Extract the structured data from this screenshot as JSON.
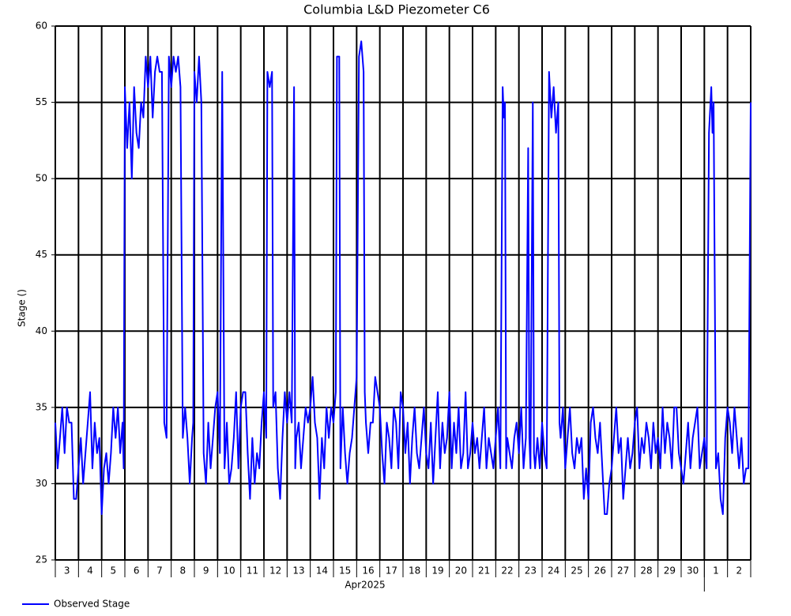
{
  "chart_data": {
    "type": "line",
    "title": "Columbia L&D Piezometer C6",
    "y_label": "Stage ()",
    "x_label": "Apr2025",
    "xlim": [
      0,
      30
    ],
    "ylim": [
      25,
      60
    ],
    "yticks": [
      25,
      30,
      35,
      40,
      45,
      50,
      55,
      60
    ],
    "grid": true,
    "x_gridlines": [
      0,
      1,
      2,
      3,
      4,
      5,
      6,
      7,
      8,
      9,
      10,
      11,
      12,
      13,
      14,
      15,
      16,
      17,
      18,
      19,
      20,
      21,
      22,
      23,
      24,
      25,
      26,
      27,
      28,
      29,
      30
    ],
    "month_ticks": [
      28
    ],
    "xticks": [
      {
        "value": 0.5,
        "label": "3"
      },
      {
        "value": 1.5,
        "label": "4"
      },
      {
        "value": 2.5,
        "label": "5"
      },
      {
        "value": 3.5,
        "label": "6"
      },
      {
        "value": 4.5,
        "label": "7"
      },
      {
        "value": 5.5,
        "label": "8"
      },
      {
        "value": 6.5,
        "label": "9"
      },
      {
        "value": 7.5,
        "label": "10"
      },
      {
        "value": 8.5,
        "label": "11"
      },
      {
        "value": 9.5,
        "label": "12"
      },
      {
        "value": 10.5,
        "label": "13"
      },
      {
        "value": 11.5,
        "label": "14"
      },
      {
        "value": 12.5,
        "label": "15"
      },
      {
        "value": 13.5,
        "label": "16"
      },
      {
        "value": 14.5,
        "label": "17"
      },
      {
        "value": 15.5,
        "label": "18"
      },
      {
        "value": 16.5,
        "label": "19"
      },
      {
        "value": 17.5,
        "label": "20"
      },
      {
        "value": 18.5,
        "label": "21"
      },
      {
        "value": 19.5,
        "label": "22"
      },
      {
        "value": 20.5,
        "label": "23"
      },
      {
        "value": 21.5,
        "label": "24"
      },
      {
        "value": 22.5,
        "label": "25"
      },
      {
        "value": 23.5,
        "label": "26"
      },
      {
        "value": 24.5,
        "label": "27"
      },
      {
        "value": 25.5,
        "label": "28"
      },
      {
        "value": 26.5,
        "label": "29"
      },
      {
        "value": 27.5,
        "label": "30"
      },
      {
        "value": 28.5,
        "label": "1"
      },
      {
        "value": 29.5,
        "label": "2"
      }
    ],
    "x": [
      0,
      0.1,
      0.2,
      0.3,
      0.4,
      0.5,
      0.6,
      0.7,
      0.8,
      0.9,
      1,
      1.1,
      1.2,
      1.3,
      1.4,
      1.5,
      1.6,
      1.7,
      1.8,
      1.9,
      2,
      2.1,
      2.2,
      2.3,
      2.4,
      2.5,
      2.6,
      2.7,
      2.8,
      2.9,
      2.95,
      3,
      3.1,
      3.2,
      3.3,
      3.4,
      3.5,
      3.6,
      3.7,
      3.8,
      3.9,
      4,
      4.1,
      4.2,
      4.3,
      4.4,
      4.5,
      4.6,
      4.7,
      4.8,
      4.9,
      5,
      5.1,
      5.2,
      5.3,
      5.4,
      5.5,
      5.6,
      5.7,
      5.8,
      5.9,
      5.95,
      6,
      6.1,
      6.2,
      6.3,
      6.4,
      6.5,
      6.6,
      6.7,
      6.8,
      6.9,
      7,
      7.1,
      7.2,
      7.3,
      7.4,
      7.5,
      7.6,
      7.7,
      7.8,
      7.9,
      8,
      8.1,
      8.2,
      8.3,
      8.4,
      8.5,
      8.6,
      8.7,
      8.8,
      8.9,
      9,
      9.1,
      9.15,
      9.25,
      9.35,
      9.4,
      9.5,
      9.6,
      9.7,
      9.8,
      9.9,
      10,
      10.1,
      10.2,
      10.3,
      10.35,
      10.4,
      10.5,
      10.6,
      10.7,
      10.8,
      10.9,
      11,
      11.1,
      11.2,
      11.3,
      11.4,
      11.5,
      11.6,
      11.7,
      11.8,
      11.9,
      12,
      12.1,
      12.15,
      12.25,
      12.3,
      12.4,
      12.5,
      12.6,
      12.7,
      12.8,
      12.9,
      13,
      13.1,
      13.2,
      13.3,
      13.35,
      13.4,
      13.5,
      13.6,
      13.7,
      13.8,
      13.9,
      14,
      14.1,
      14.2,
      14.3,
      14.4,
      14.5,
      14.6,
      14.7,
      14.8,
      14.9,
      15,
      15.1,
      15.2,
      15.3,
      15.4,
      15.5,
      15.6,
      15.7,
      15.8,
      15.9,
      16,
      16.1,
      16.2,
      16.3,
      16.4,
      16.5,
      16.6,
      16.7,
      16.8,
      16.9,
      17,
      17.1,
      17.2,
      17.3,
      17.4,
      17.5,
      17.6,
      17.7,
      17.8,
      17.9,
      18,
      18.1,
      18.2,
      18.3,
      18.4,
      18.5,
      18.6,
      18.7,
      18.8,
      18.9,
      19,
      19.1,
      19.2,
      19.3,
      19.35,
      19.4,
      19.45,
      19.5,
      19.6,
      19.7,
      19.8,
      19.9,
      20,
      20.1,
      20.2,
      20.3,
      20.4,
      20.45,
      20.5,
      20.6,
      20.65,
      20.7,
      20.8,
      20.9,
      21,
      21.1,
      21.2,
      21.3,
      21.4,
      21.5,
      21.6,
      21.7,
      21.75,
      21.8,
      21.9,
      22,
      22.1,
      22.2,
      22.3,
      22.4,
      22.5,
      22.6,
      22.7,
      22.8,
      22.9,
      23,
      23.1,
      23.2,
      23.3,
      23.4,
      23.5,
      23.6,
      23.7,
      23.8,
      23.9,
      24,
      24.1,
      24.2,
      24.3,
      24.4,
      24.5,
      24.6,
      24.7,
      24.8,
      24.9,
      25,
      25.1,
      25.2,
      25.3,
      25.4,
      25.5,
      25.6,
      25.7,
      25.8,
      25.9,
      26,
      26.1,
      26.2,
      26.3,
      26.4,
      26.5,
      26.6,
      26.7,
      26.8,
      26.9,
      27,
      27.1,
      27.2,
      27.3,
      27.4,
      27.5,
      27.6,
      27.7,
      27.8,
      27.9,
      28,
      28.1,
      28.2,
      28.3,
      28.35,
      28.4,
      28.5,
      28.6,
      28.7,
      28.8,
      28.9,
      29,
      29.1,
      29.2,
      29.3,
      29.4,
      29.5,
      29.6,
      29.7,
      29.8,
      29.9,
      30
    ],
    "series": [
      {
        "name": "Observed Stage",
        "color": "#0000ff",
        "values": [
          34,
          31,
          33,
          35,
          32,
          35,
          34,
          34,
          29,
          29,
          31,
          33,
          30,
          32,
          34,
          36,
          31,
          34,
          32,
          33,
          28,
          31,
          32,
          30,
          32,
          35,
          33,
          35,
          32,
          34,
          31,
          56,
          52,
          55,
          50,
          56,
          53,
          52,
          55,
          54,
          58,
          56,
          58,
          54,
          57,
          58,
          57,
          57,
          34,
          33,
          58,
          56,
          58,
          57,
          58,
          56,
          33,
          35,
          33,
          30,
          33,
          34,
          57,
          55,
          58,
          55,
          32,
          30,
          34,
          31,
          33,
          35,
          36,
          32,
          57,
          31,
          34,
          30,
          31,
          33,
          36,
          31,
          35,
          36,
          36,
          32,
          29,
          33,
          30,
          32,
          31,
          34,
          36,
          33,
          57,
          56,
          57,
          35,
          36,
          31,
          29,
          33,
          36,
          34,
          36,
          34,
          56,
          31,
          33,
          34,
          31,
          33,
          35,
          34,
          35,
          37,
          34,
          33,
          29,
          33,
          31,
          35,
          33,
          35,
          34,
          36,
          58,
          58,
          31,
          35,
          32,
          30,
          32,
          33,
          35,
          37,
          58,
          59,
          57,
          36,
          34,
          32,
          34,
          34,
          37,
          36,
          35,
          32,
          30,
          34,
          33,
          31,
          35,
          34,
          31,
          36,
          35,
          32,
          34,
          30,
          33,
          35,
          32,
          31,
          33,
          35,
          32,
          31,
          34,
          30,
          33,
          36,
          31,
          34,
          32,
          33,
          36,
          31,
          34,
          32,
          35,
          31,
          32,
          36,
          31,
          32,
          34,
          32,
          33,
          31,
          33,
          35,
          31,
          33,
          32,
          31,
          33,
          35,
          31,
          56,
          54,
          55,
          31,
          33,
          32,
          31,
          33,
          34,
          32,
          35,
          31,
          33,
          52,
          33,
          31,
          55,
          32,
          31,
          33,
          31,
          34,
          32,
          31,
          57,
          54,
          56,
          53,
          55,
          34,
          33,
          35,
          31,
          33,
          35,
          32,
          31,
          33,
          32,
          33,
          29,
          31,
          29,
          34,
          35,
          33,
          32,
          34,
          31,
          28,
          28,
          30,
          31,
          33,
          35,
          32,
          33,
          29,
          31,
          33,
          31,
          32,
          34,
          35,
          31,
          33,
          32,
          34,
          33,
          31,
          34,
          32,
          33,
          31,
          35,
          32,
          34,
          33,
          31,
          35,
          35,
          32,
          31,
          30,
          32,
          34,
          31,
          33,
          34,
          35,
          31,
          32,
          33,
          31,
          53,
          56,
          53,
          55,
          31,
          32,
          29,
          28,
          33,
          35,
          34,
          32,
          35,
          33,
          31,
          33,
          30,
          31,
          31,
          55
        ]
      }
    ]
  }
}
